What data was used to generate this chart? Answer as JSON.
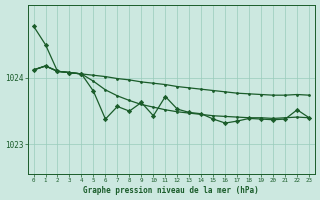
{
  "background_color": "#cce8e0",
  "grid_color": "#99ccbb",
  "line_color": "#1a5c2a",
  "xlim_min": -0.5,
  "xlim_max": 23.5,
  "ylim_min": 1022.55,
  "ylim_max": 1025.1,
  "xlabel_ticks": [
    0,
    1,
    2,
    3,
    4,
    5,
    6,
    7,
    8,
    9,
    10,
    11,
    12,
    13,
    14,
    15,
    16,
    17,
    18,
    19,
    20,
    21,
    22,
    23
  ],
  "yticks": [
    1023,
    1024
  ],
  "title": "Graphe pression niveau de la mer (hPa)",
  "line_smooth_top": {
    "x": [
      0,
      1,
      2,
      3,
      4,
      5,
      6,
      7,
      8,
      9,
      10,
      11,
      12,
      13,
      14,
      15,
      16,
      17,
      18,
      19,
      20,
      21,
      22,
      23
    ],
    "y": [
      1024.12,
      1024.18,
      1024.1,
      1024.08,
      1024.06,
      1024.04,
      1024.02,
      1023.99,
      1023.97,
      1023.94,
      1023.92,
      1023.9,
      1023.87,
      1023.85,
      1023.83,
      1023.81,
      1023.79,
      1023.77,
      1023.76,
      1023.75,
      1023.74,
      1023.74,
      1023.75,
      1023.74
    ],
    "marker": ".",
    "markersize": 2.0,
    "linewidth": 0.9
  },
  "line_smooth_mid": {
    "x": [
      0,
      1,
      2,
      3,
      4,
      5,
      6,
      7,
      8,
      9,
      10,
      11,
      12,
      13,
      14,
      15,
      16,
      17,
      18,
      19,
      20,
      21,
      22,
      23
    ],
    "y": [
      1024.12,
      1024.18,
      1024.1,
      1024.08,
      1024.06,
      1023.95,
      1023.82,
      1023.73,
      1023.66,
      1023.6,
      1023.56,
      1023.52,
      1023.49,
      1023.47,
      1023.45,
      1023.43,
      1023.42,
      1023.41,
      1023.4,
      1023.4,
      1023.39,
      1023.4,
      1023.41,
      1023.4
    ],
    "marker": ".",
    "markersize": 2.0,
    "linewidth": 0.9
  },
  "line_steep_start": {
    "x": [
      0,
      1,
      2,
      3,
      4
    ],
    "y": [
      1024.78,
      1024.5,
      1024.1,
      1024.08,
      1024.06
    ],
    "marker": "D",
    "markersize": 2.2,
    "linewidth": 0.9
  },
  "line_jagged": {
    "x": [
      0,
      1,
      2,
      3,
      4,
      5,
      6,
      7,
      8,
      9,
      10,
      11,
      12,
      13,
      14,
      15,
      16,
      17,
      18,
      19,
      20,
      21,
      22,
      23
    ],
    "y": [
      1024.12,
      1024.18,
      1024.1,
      1024.08,
      1024.06,
      1023.8,
      1023.38,
      1023.57,
      1023.5,
      1023.63,
      1023.43,
      1023.72,
      1023.53,
      1023.48,
      1023.46,
      1023.38,
      1023.32,
      1023.35,
      1023.39,
      1023.38,
      1023.37,
      1023.38,
      1023.52,
      1023.4
    ],
    "marker": "D",
    "markersize": 2.2,
    "linewidth": 0.9
  }
}
